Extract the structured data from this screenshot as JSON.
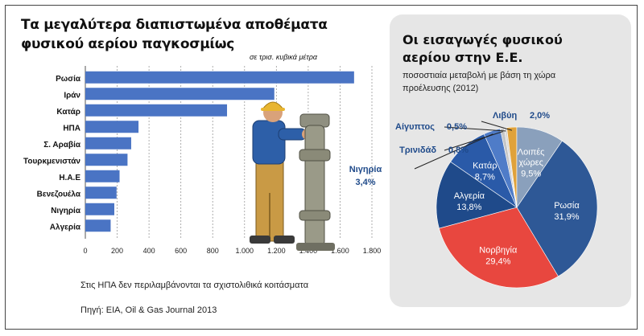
{
  "chart_data": [
    {
      "type": "bar",
      "orientation": "horizontal",
      "title_line1": "Τα μεγαλύτερα διαπιστωμένα αποθέματα",
      "title_line2": "φυσικού αερίου παγκοσμίως",
      "unit_label": "σε τρισ. κυβικά μέτρα",
      "categories": [
        "Ρωσία",
        "Ιράν",
        "Κατάρ",
        "ΗΠΑ",
        "Σ. Αραβία",
        "Τουρκμενιστάν",
        "Η.Α.Ε",
        "Βενεζουέλα",
        "Νιγηρία",
        "Αλγερία"
      ],
      "values": [
        1688,
        1187,
        890,
        334,
        288,
        265,
        215,
        196,
        182,
        159
      ],
      "xlim": [
        0,
        1800
      ],
      "ticks": [
        "0",
        "200",
        "400",
        "600",
        "800",
        "1.000",
        "1.200",
        "1.400",
        "1.600",
        "1.800"
      ],
      "grid": true,
      "bar_color": "#4a74c4",
      "note": "Στις ΗΠΑ δεν περιλαμβάνονται τα σχιστολιθικά κοιτάσματα",
      "source": "Πηγή: EIA, Oil & Gas Journal 2013"
    },
    {
      "type": "pie",
      "title_line1": "Οι εισαγωγές φυσικού",
      "title_line2": "αερίου στην Ε.Ε.",
      "subtitle_line1": "ποσοστιαία μεταβολή με βάση τη χώρα",
      "subtitle_line2": "προέλευσης (2012)",
      "slices": [
        {
          "name": "Ρωσία",
          "value": 31.9,
          "label": "31,9%",
          "color": "#2e5896"
        },
        {
          "name": "Νορβηγία",
          "value": 29.4,
          "label": "29,4%",
          "color": "#e8473f"
        },
        {
          "name": "Αλγερία",
          "value": 13.8,
          "label": "13,8%",
          "color": "#1f4a8a"
        },
        {
          "name": "Κατάρ",
          "value": 8.7,
          "label": "8,7%",
          "color": "#2a5aa8"
        },
        {
          "name": "Νιγηρία",
          "value": 3.4,
          "label": "3,4%",
          "color": "#4f7cc8"
        },
        {
          "name": "Τρινιδάδ",
          "value": 0.8,
          "label": "0,8%",
          "color": "#c6c6c6"
        },
        {
          "name": "Αίγυπτος",
          "value": 0.5,
          "label": "0,5%",
          "color": "#d9d9d9"
        },
        {
          "name": "Λιβύη",
          "value": 2.0,
          "label": "2,0%",
          "color": "#e0a23a"
        },
        {
          "name": "Λοιπές χώρες",
          "value": 9.5,
          "label": "9,5%",
          "color": "#8aa0bc"
        }
      ]
    }
  ]
}
